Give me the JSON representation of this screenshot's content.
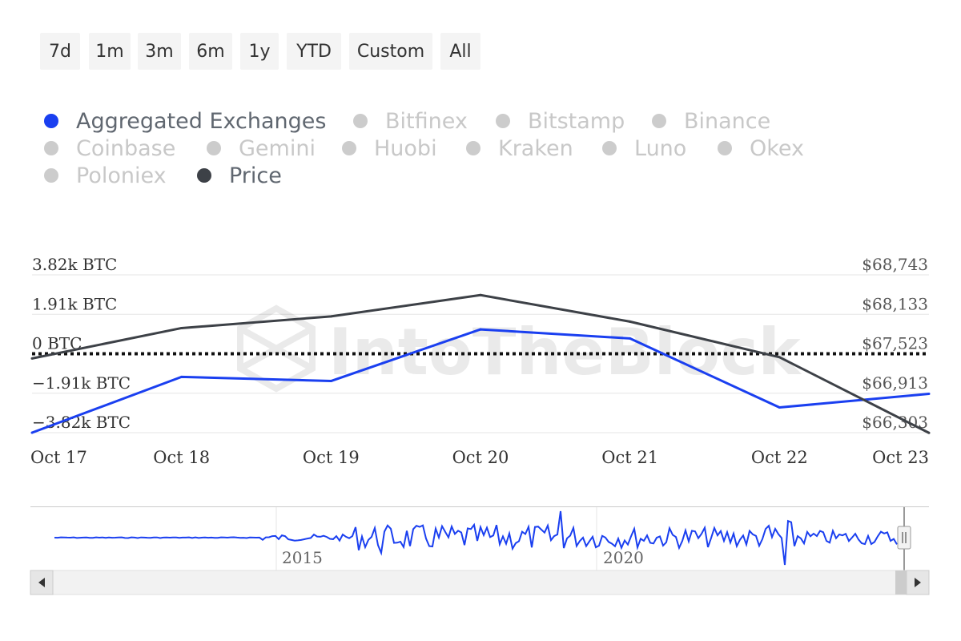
{
  "range_buttons": [
    "7d",
    "1m",
    "3m",
    "6m",
    "1y",
    "YTD",
    "Custom",
    "All"
  ],
  "legend": [
    {
      "label": "Aggregated Exchanges",
      "color": "#1a3ff0",
      "active": true
    },
    {
      "label": "Bitfinex",
      "color": "#cccccc",
      "active": false
    },
    {
      "label": "Bitstamp",
      "color": "#cccccc",
      "active": false
    },
    {
      "label": "Binance",
      "color": "#cccccc",
      "active": false
    },
    {
      "label": "Coinbase",
      "color": "#cccccc",
      "active": false
    },
    {
      "label": "Gemini",
      "color": "#cccccc",
      "active": false
    },
    {
      "label": "Huobi",
      "color": "#cccccc",
      "active": false
    },
    {
      "label": "Kraken",
      "color": "#cccccc",
      "active": false
    },
    {
      "label": "Luno",
      "color": "#cccccc",
      "active": false
    },
    {
      "label": "Okex",
      "color": "#cccccc",
      "active": false
    },
    {
      "label": "Poloniex",
      "color": "#cccccc",
      "active": false
    },
    {
      "label": "Price",
      "color": "#3d4147",
      "active": true
    }
  ],
  "watermark": "IntoTheBlock",
  "chart_data": {
    "type": "line",
    "categories": [
      "Oct 17",
      "Oct 18",
      "Oct 19",
      "Oct 20",
      "Oct 21",
      "Oct 22",
      "Oct 23"
    ],
    "series": [
      {
        "name": "Aggregated Exchanges",
        "axis": "left",
        "color": "#1a3ff0",
        "values": [
          -3820,
          -1120,
          -1320,
          1180,
          740,
          -2600,
          -1940
        ]
      },
      {
        "name": "Price",
        "axis": "right",
        "color": "#3d4147",
        "values": [
          67450,
          67920,
          68100,
          68430,
          68020,
          67470,
          66300
        ]
      }
    ],
    "y_left": {
      "ticks": [
        3820,
        1910,
        0,
        -1910,
        -3820
      ],
      "tick_labels": [
        "3.82k BTC",
        "1.91k BTC",
        "0 BTC",
        "−1.91k BTC",
        "−3.82k BTC"
      ],
      "range": [
        -3820,
        3820
      ]
    },
    "y_right": {
      "ticks": [
        68743,
        68133,
        67523,
        66913,
        66303
      ],
      "tick_labels": [
        "$68,743",
        "$68,133",
        "$67,523",
        "$66,913",
        "$66,303"
      ],
      "range": [
        66303,
        68743
      ]
    },
    "zero_line": "dotted",
    "grid": true
  },
  "navigator": {
    "year_labels": [
      "2015",
      "2020"
    ]
  },
  "colors": {
    "accent": "#1a3ff0",
    "price": "#3d4147",
    "grid": "#e6e6e6"
  }
}
